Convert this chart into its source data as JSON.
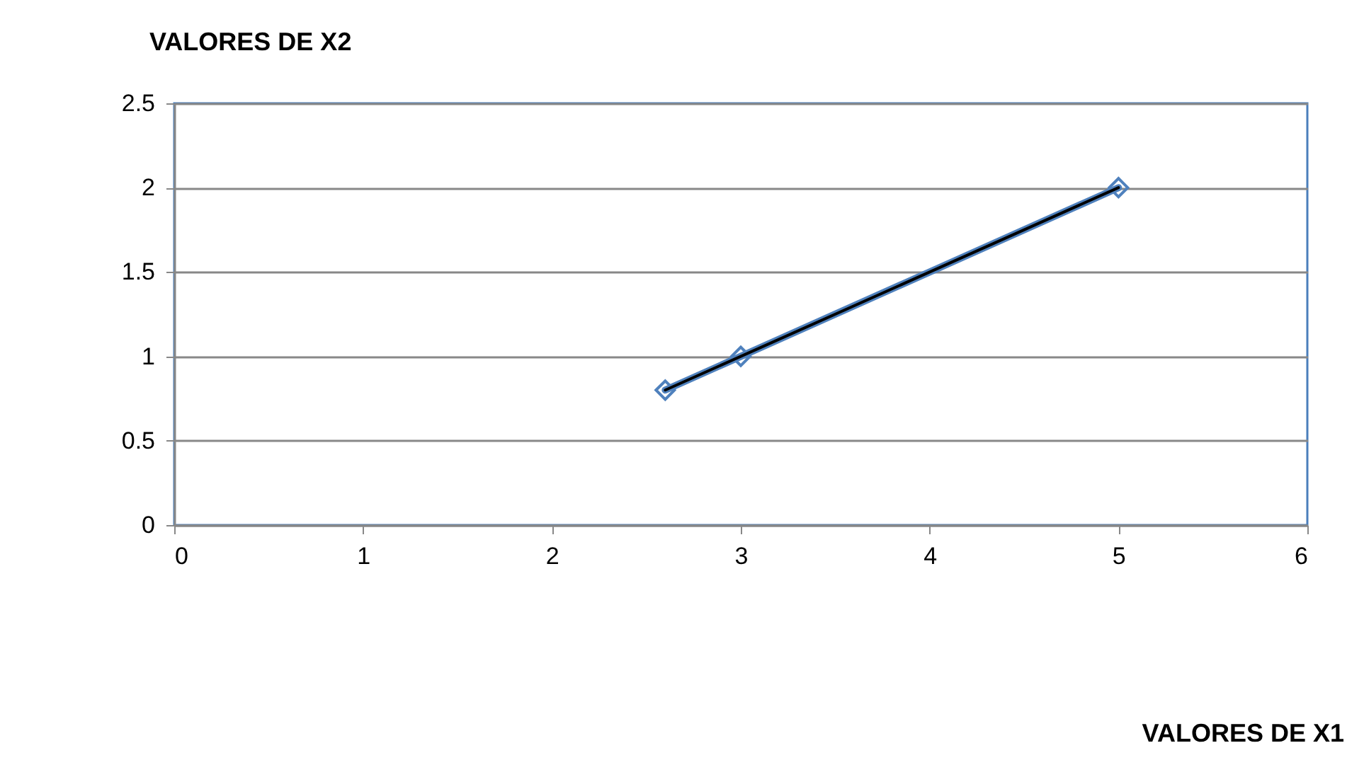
{
  "chart_data": {
    "type": "line",
    "ylabel": "VALORES DE X2",
    "annotations": [
      "VALORES DE X1"
    ],
    "series": [
      {
        "color": "#4f81bd",
        "x": [
          2.6,
          3,
          5
        ],
        "values": [
          0.8,
          1,
          2
        ],
        "marker": "diamond"
      },
      {
        "color": "#000000",
        "x": [
          2.6,
          3,
          5
        ],
        "values": [
          0.8,
          1,
          2
        ],
        "marker": "none"
      }
    ],
    "xlim": [
      0,
      6
    ],
    "xticks": [
      0,
      1,
      2,
      3,
      4,
      5,
      6
    ],
    "ylim": [
      0,
      2.5
    ],
    "yticks": [
      0,
      0.5,
      1,
      1.5,
      2,
      2.5
    ],
    "grid": "y"
  }
}
